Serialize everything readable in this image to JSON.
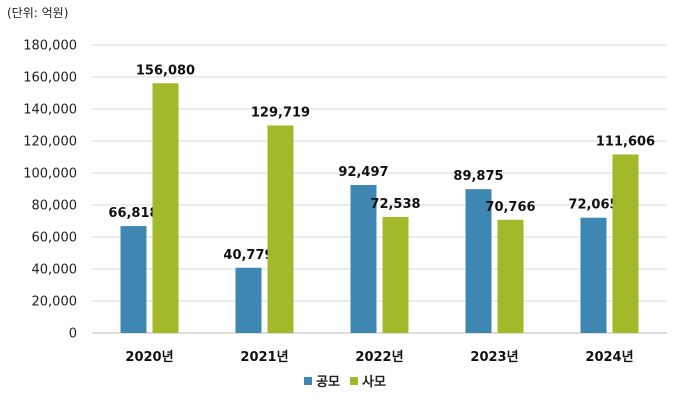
{
  "chart_data": {
    "type": "bar",
    "unit_label": "(단위: 억원)",
    "categories": [
      "2020년",
      "2021년",
      "2022년",
      "2023년",
      "2024년"
    ],
    "series": [
      {
        "name": "공모",
        "color": "#3f87b3",
        "values": [
          66818,
          40779,
          92497,
          89875,
          72065
        ],
        "labels": [
          "66,818",
          "40,779",
          "92,497",
          "89,875",
          "72,065"
        ]
      },
      {
        "name": "사모",
        "color": "#a3b92a",
        "values": [
          156080,
          129719,
          72538,
          70766,
          111606
        ],
        "labels": [
          "156,080",
          "129,719",
          "72,538",
          "70,766",
          "111,606"
        ]
      }
    ],
    "yticks": [
      0,
      20000,
      40000,
      60000,
      80000,
      100000,
      120000,
      140000,
      160000,
      180000
    ],
    "ytick_labels": [
      "0",
      "20,000",
      "40,000",
      "60,000",
      "80,000",
      "100,000",
      "120,000",
      "140,000",
      "160,000",
      "180,000"
    ],
    "ylim": [
      0,
      180000
    ],
    "grid": true,
    "legend_position": "bottom"
  }
}
